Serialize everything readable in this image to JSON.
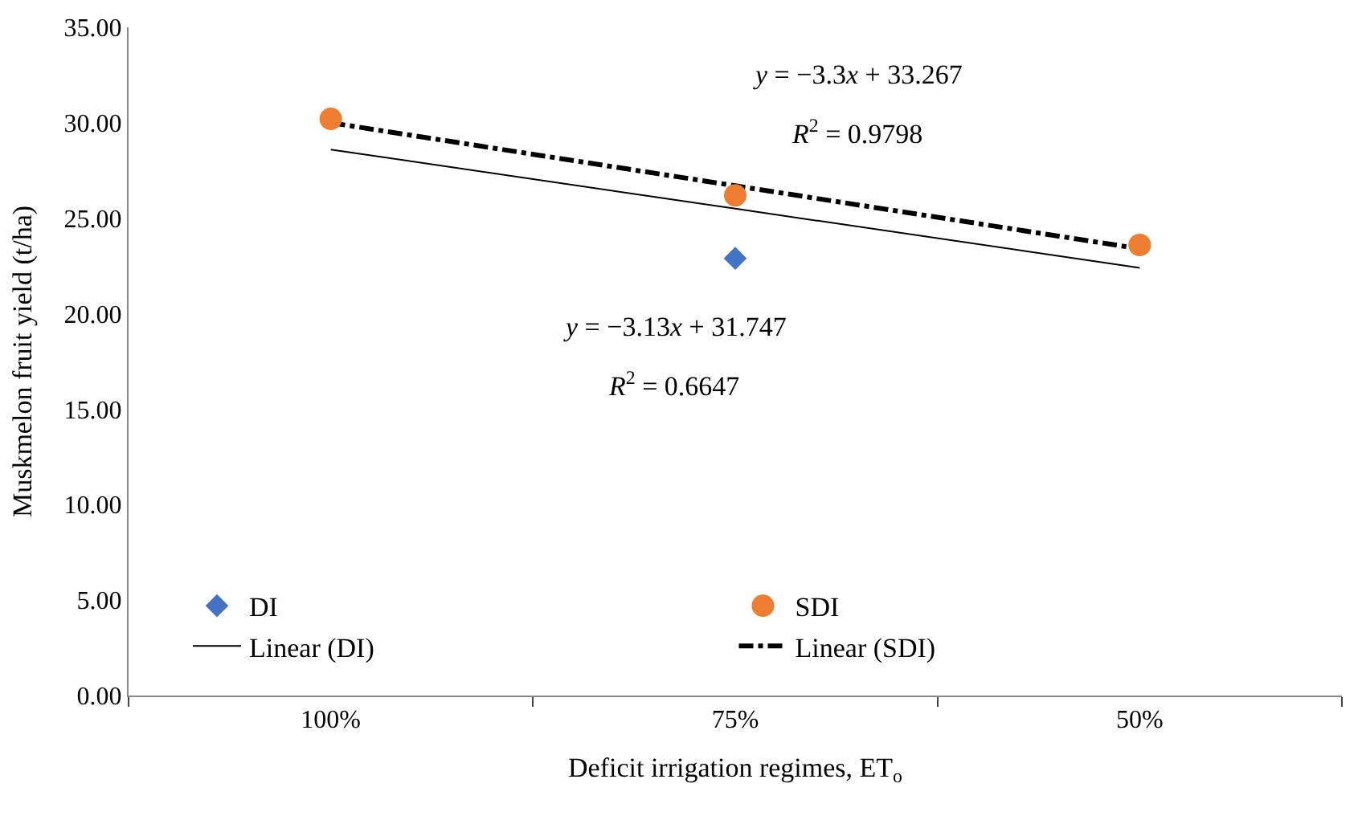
{
  "chart_data": {
    "type": "scatter",
    "xlabel": "Deficit irrigation regimes, ET$_{o}$",
    "ylabel": "Muskmelon fruit yield (t/ha)",
    "categories": [
      "100%",
      "75%",
      "50%"
    ],
    "ylim": [
      0,
      35
    ],
    "yticks": [
      {
        "value": 0,
        "label": "0.00"
      },
      {
        "value": 5,
        "label": "5.00"
      },
      {
        "value": 10,
        "label": "10.00"
      },
      {
        "value": 15,
        "label": "15.00"
      },
      {
        "value": 20,
        "label": "20.00"
      },
      {
        "value": 25,
        "label": "25.00"
      },
      {
        "value": 30,
        "label": "30.00"
      },
      {
        "value": 35,
        "label": "35.00"
      }
    ],
    "legend": "bottom",
    "series": [
      {
        "name": "DI",
        "marker": "diamond",
        "color": "#4472c4",
        "values": [
          null,
          22.9,
          null
        ]
      },
      {
        "name": "SDI",
        "marker": "circle",
        "color": "#ed7d31",
        "values": [
          30.2,
          26.2,
          23.6
        ]
      },
      {
        "name": "Linear (DI)",
        "type": "line",
        "marker": "none",
        "line_style": "solid",
        "color": "#000000",
        "values": [
          28.6,
          25.5,
          22.4
        ]
      },
      {
        "name": "Linear (SDI)",
        "type": "line",
        "marker": "none",
        "line_style": "dashdot",
        "color": "#000000",
        "values": [
          30.0,
          26.7,
          23.4
        ]
      }
    ],
    "annotations": [
      "y = −3.3x + 33.267",
      "R$^{2}$ = 0.9798",
      "y = −3.13x + 31.747",
      "R$^{2}$ = 0.6647"
    ]
  }
}
